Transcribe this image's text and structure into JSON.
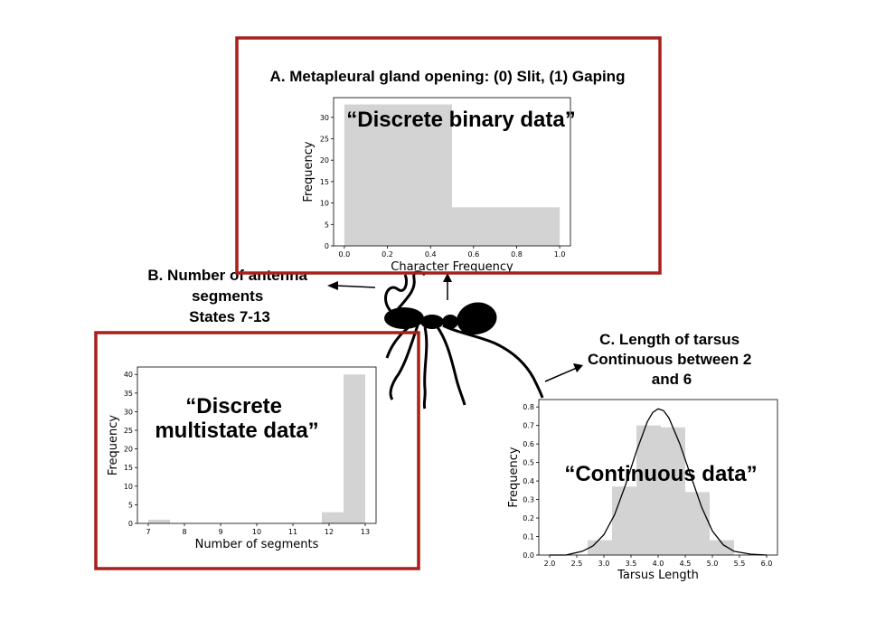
{
  "panels": [
    {
      "title": "A.  Metapleural gland opening: (0) Slit, (1) Gaping",
      "callout": [
        "“Discrete binary data”"
      ],
      "chart_data": {
        "type": "bar",
        "bins": [
          [
            0.0,
            0.5
          ],
          [
            0.5,
            1.0
          ]
        ],
        "values": [
          33,
          9
        ],
        "xlabel": "Character Frequency",
        "ylabel": "Frequency",
        "xlim": [
          -0.05,
          1.05
        ],
        "ylim": [
          0,
          34.6
        ],
        "xticks": [
          0.0,
          0.2,
          0.4,
          0.6,
          0.8,
          1.0
        ],
        "xtick_labels": [
          "0.0",
          "0.2",
          "0.4",
          "0.6",
          "0.8",
          "1.0"
        ],
        "yticks": [
          0,
          5,
          10,
          15,
          20,
          25,
          30
        ],
        "ytick_labels": [
          "0",
          "5",
          "10",
          "15",
          "20",
          "25",
          "30"
        ],
        "bar_color": "#d3d3d3",
        "grid": false
      }
    },
    {
      "title": [
        "B. Number of antenna",
        "segments",
        "States 7-13"
      ],
      "callout": [
        "“Discrete",
        "multistate data”"
      ],
      "chart_data": {
        "type": "bar",
        "bins": [
          [
            7.0,
            7.6
          ],
          [
            7.6,
            8.2
          ],
          [
            8.2,
            8.8
          ],
          [
            8.8,
            9.4
          ],
          [
            9.4,
            10.0
          ],
          [
            10.0,
            10.6
          ],
          [
            10.6,
            11.2
          ],
          [
            11.2,
            11.8
          ],
          [
            11.8,
            12.4
          ],
          [
            12.4,
            13.0
          ]
        ],
        "values": [
          1,
          0,
          0,
          0,
          0,
          0,
          0,
          0,
          3,
          40
        ],
        "xlabel": "Number of segments",
        "ylabel": "Frequency",
        "xlim": [
          6.7,
          13.3
        ],
        "ylim": [
          0,
          42
        ],
        "xticks": [
          7,
          8,
          9,
          10,
          11,
          12,
          13
        ],
        "xtick_labels": [
          "7",
          "8",
          "9",
          "10",
          "11",
          "12",
          "13"
        ],
        "yticks": [
          0,
          5,
          10,
          15,
          20,
          25,
          30,
          35,
          40
        ],
        "ytick_labels": [
          "0",
          "5",
          "10",
          "15",
          "20",
          "25",
          "30",
          "35",
          "40"
        ],
        "bar_color": "#d3d3d3",
        "grid": false
      }
    },
    {
      "title": [
        "C. Length of tarsus",
        "Continuous between 2",
        "and 6"
      ],
      "callout": [
        "“Continuous data”"
      ],
      "chart_data": {
        "type": "bar",
        "bins": [
          [
            2.7,
            3.15
          ],
          [
            3.15,
            3.6
          ],
          [
            3.6,
            4.05
          ],
          [
            4.05,
            4.5
          ],
          [
            4.5,
            4.95
          ],
          [
            4.95,
            5.4
          ]
        ],
        "values": [
          0.08,
          0.37,
          0.7,
          0.69,
          0.34,
          0.08
        ],
        "density_curve": {
          "x": [
            2.0,
            2.3,
            2.6,
            2.8,
            3.0,
            3.2,
            3.4,
            3.6,
            3.8,
            3.9,
            4.0,
            4.1,
            4.2,
            4.4,
            4.6,
            4.8,
            5.0,
            5.2,
            5.4,
            5.7,
            6.0
          ],
          "y": [
            0.0,
            0.0,
            0.02,
            0.05,
            0.11,
            0.22,
            0.38,
            0.56,
            0.72,
            0.77,
            0.79,
            0.78,
            0.74,
            0.6,
            0.43,
            0.26,
            0.13,
            0.055,
            0.02,
            0.005,
            0.0
          ]
        },
        "xlabel": "Tarsus Length",
        "ylabel": "Frequency",
        "xlim": [
          1.8,
          6.2
        ],
        "ylim": [
          0,
          0.84
        ],
        "xticks": [
          2.0,
          2.5,
          3.0,
          3.5,
          4.0,
          4.5,
          5.0,
          5.5,
          6.0
        ],
        "xtick_labels": [
          "2.0",
          "2.5",
          "3.0",
          "3.5",
          "4.0",
          "4.5",
          "5.0",
          "5.5",
          "6.0"
        ],
        "yticks": [
          0.0,
          0.1,
          0.2,
          0.3,
          0.4,
          0.5,
          0.6,
          0.7,
          0.8
        ],
        "ytick_labels": [
          "0.0",
          "0.1",
          "0.2",
          "0.3",
          "0.4",
          "0.5",
          "0.6",
          "0.7",
          "0.8"
        ],
        "bar_color": "#d3d3d3",
        "grid": false
      }
    }
  ],
  "colors": {
    "frame": "#a91f1b",
    "bars": "#d3d3d3",
    "ant": "#000000"
  },
  "icons": {
    "ant": "ant-silhouette-icon"
  }
}
